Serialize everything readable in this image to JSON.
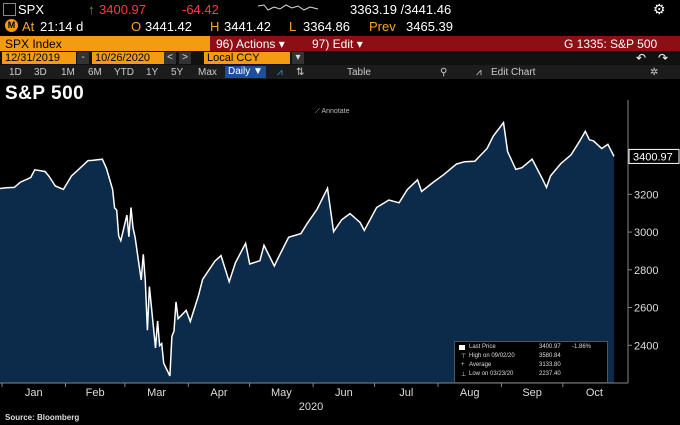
{
  "quote": {
    "ticker": "SPX",
    "last": "3400.97",
    "change": "-64.42",
    "range": "3363.19 /3441.46",
    "at_label": "At",
    "at_time": "21:14 d",
    "o_label": "O",
    "open": "3441.42",
    "h_label": "H",
    "high": "3441.42",
    "l_label": "L",
    "low": "3364.86",
    "prev_label": "Prev",
    "prev": "3465.39"
  },
  "toolbar": {
    "index_name": "SPX Index",
    "actions_label": "96) Actions ▾",
    "edit_label": "97) Edit ▾",
    "chart_id": "G 1335: S&P 500",
    "start_date": "12/31/2019",
    "end_date": "10/26/2020",
    "currency": "Local CCY",
    "ranges": [
      "1D",
      "3D",
      "1M",
      "6M",
      "YTD",
      "1Y",
      "5Y",
      "Max"
    ],
    "period": "Daily ▼",
    "table_label": "Table",
    "edit_chart_label": "Edit Chart"
  },
  "chart_title": "S&P 500",
  "annotate_label": "Annotate",
  "source": "Source: Bloomberg",
  "legend": {
    "last_price_label": "Last Price",
    "last_price": "3400.97",
    "last_change": "-1.86%",
    "high_label": "High on 09/02/20",
    "high": "3580.84",
    "average_label": "Average",
    "average": "3133.80",
    "low_label": "Low on 03/23/20",
    "low": "2237.40"
  },
  "colors": {
    "line": "#ffffff",
    "area": "#0c2a4a",
    "accent": "#f39c12",
    "down": "#ff3b3b",
    "up": "#35c13b"
  },
  "chart_data": {
    "type": "area",
    "title": "S&P 500",
    "xlabel": "2020",
    "ylabel": "",
    "x_ticks": [
      "Jan",
      "Feb",
      "Mar",
      "Apr",
      "May",
      "Jun",
      "Jul",
      "Aug",
      "Sep",
      "Oct"
    ],
    "y_ticks": [
      2400,
      2600,
      2800,
      3000,
      3200
    ],
    "ylim": [
      2200,
      3700
    ],
    "last_value_label": "3400.97",
    "grid": false,
    "series": [
      {
        "name": "Last Price",
        "dates": [
          "2019-12-31",
          "2020-01-03",
          "2020-01-07",
          "2020-01-10",
          "2020-01-15",
          "2020-01-17",
          "2020-01-22",
          "2020-01-24",
          "2020-01-27",
          "2020-01-31",
          "2020-02-04",
          "2020-02-07",
          "2020-02-12",
          "2020-02-14",
          "2020-02-19",
          "2020-02-21",
          "2020-02-24",
          "2020-02-25",
          "2020-02-26",
          "2020-02-27",
          "2020-02-28",
          "2020-03-02",
          "2020-03-03",
          "2020-03-04",
          "2020-03-05",
          "2020-03-06",
          "2020-03-09",
          "2020-03-10",
          "2020-03-11",
          "2020-03-12",
          "2020-03-13",
          "2020-03-16",
          "2020-03-17",
          "2020-03-18",
          "2020-03-19",
          "2020-03-20",
          "2020-03-23",
          "2020-03-24",
          "2020-03-25",
          "2020-03-26",
          "2020-03-27",
          "2020-03-31",
          "2020-04-02",
          "2020-04-06",
          "2020-04-08",
          "2020-04-14",
          "2020-04-17",
          "2020-04-21",
          "2020-04-24",
          "2020-04-29",
          "2020-05-01",
          "2020-05-06",
          "2020-05-08",
          "2020-05-13",
          "2020-05-15",
          "2020-05-20",
          "2020-05-26",
          "2020-05-29",
          "2020-06-03",
          "2020-06-08",
          "2020-06-11",
          "2020-06-15",
          "2020-06-19",
          "2020-06-24",
          "2020-06-26",
          "2020-07-02",
          "2020-07-08",
          "2020-07-13",
          "2020-07-17",
          "2020-07-22",
          "2020-07-24",
          "2020-07-29",
          "2020-08-04",
          "2020-08-10",
          "2020-08-14",
          "2020-08-19",
          "2020-08-25",
          "2020-08-28",
          "2020-09-02",
          "2020-09-04",
          "2020-09-08",
          "2020-09-11",
          "2020-09-16",
          "2020-09-21",
          "2020-09-23",
          "2020-09-25",
          "2020-09-30",
          "2020-10-05",
          "2020-10-09",
          "2020-10-12",
          "2020-10-14",
          "2020-10-16",
          "2020-10-20",
          "2020-10-23",
          "2020-10-26"
        ],
        "values": [
          3231,
          3235,
          3237,
          3265,
          3289,
          3330,
          3321,
          3295,
          3244,
          3226,
          3298,
          3328,
          3379,
          3380,
          3386,
          3338,
          3226,
          3128,
          3116,
          2979,
          2954,
          3090,
          2975,
          3130,
          3023,
          2972,
          2746,
          2882,
          2741,
          2480,
          2711,
          2386,
          2529,
          2398,
          2409,
          2305,
          2237,
          2447,
          2475,
          2630,
          2541,
          2585,
          2526,
          2664,
          2749,
          2846,
          2875,
          2737,
          2837,
          2940,
          2831,
          2848,
          2930,
          2820,
          2864,
          2972,
          2992,
          3044,
          3122,
          3232,
          3002,
          3066,
          3098,
          3050,
          3009,
          3130,
          3170,
          3155,
          3225,
          3277,
          3215,
          3258,
          3306,
          3360,
          3373,
          3375,
          3443,
          3508,
          3580,
          3427,
          3332,
          3341,
          3386,
          3282,
          3237,
          3298,
          3363,
          3409,
          3478,
          3534,
          3489,
          3483,
          3443,
          3465,
          3400.97
        ]
      }
    ]
  }
}
